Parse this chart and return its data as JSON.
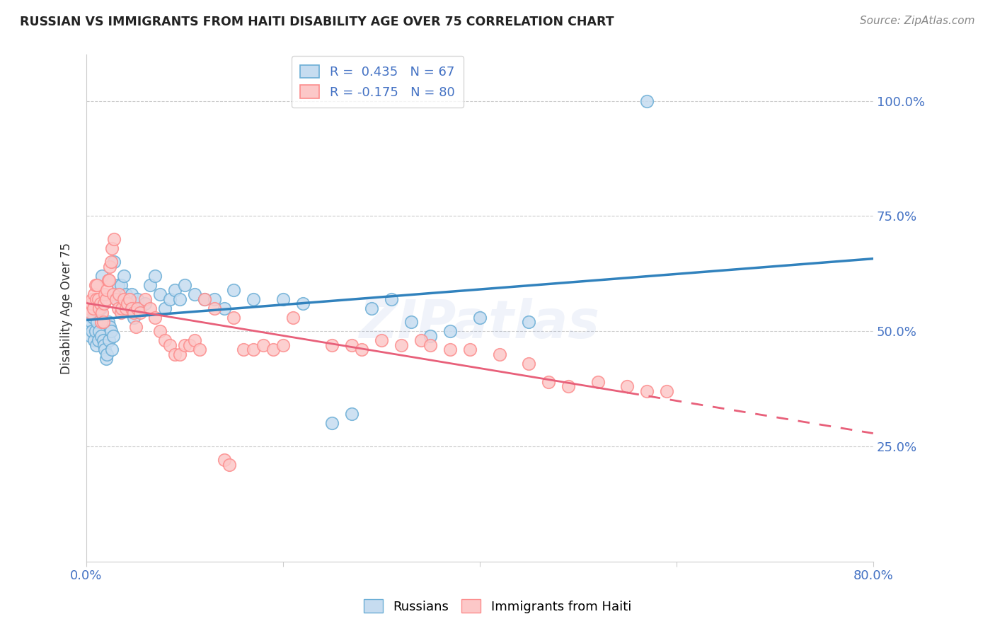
{
  "title": "RUSSIAN VS IMMIGRANTS FROM HAITI DISABILITY AGE OVER 75 CORRELATION CHART",
  "source": "Source: ZipAtlas.com",
  "ylabel": "Disability Age Over 75",
  "yticks": [
    "25.0%",
    "50.0%",
    "75.0%",
    "100.0%"
  ],
  "ytick_vals": [
    0.25,
    0.5,
    0.75,
    1.0
  ],
  "xmin": 0.0,
  "xmax": 0.8,
  "ymin": 0.0,
  "ymax": 1.1,
  "legend_r1": "R =  0.435   N = 67",
  "legend_r2": "R = -0.175   N = 80",
  "russian_color": "#6baed6",
  "haiti_color": "#fc8d8d",
  "trend_blue": "#3182bd",
  "trend_pink": "#e8607a",
  "watermark": "ZIPatlas",
  "russian_r": 0.435,
  "haiti_r": -0.175,
  "russian_points": [
    [
      0.003,
      0.51
    ],
    [
      0.004,
      0.49
    ],
    [
      0.005,
      0.52
    ],
    [
      0.006,
      0.5
    ],
    [
      0.007,
      0.53
    ],
    [
      0.008,
      0.48
    ],
    [
      0.009,
      0.5
    ],
    [
      0.01,
      0.47
    ],
    [
      0.011,
      0.52
    ],
    [
      0.012,
      0.48
    ],
    [
      0.013,
      0.5
    ],
    [
      0.014,
      0.55
    ],
    [
      0.015,
      0.49
    ],
    [
      0.016,
      0.62
    ],
    [
      0.017,
      0.48
    ],
    [
      0.018,
      0.47
    ],
    [
      0.019,
      0.46
    ],
    [
      0.02,
      0.44
    ],
    [
      0.021,
      0.45
    ],
    [
      0.022,
      0.52
    ],
    [
      0.023,
      0.48
    ],
    [
      0.024,
      0.51
    ],
    [
      0.025,
      0.5
    ],
    [
      0.026,
      0.46
    ],
    [
      0.027,
      0.49
    ],
    [
      0.028,
      0.65
    ],
    [
      0.03,
      0.57
    ],
    [
      0.032,
      0.6
    ],
    [
      0.033,
      0.58
    ],
    [
      0.035,
      0.6
    ],
    [
      0.036,
      0.57
    ],
    [
      0.038,
      0.62
    ],
    [
      0.04,
      0.58
    ],
    [
      0.042,
      0.55
    ],
    [
      0.044,
      0.57
    ],
    [
      0.046,
      0.58
    ],
    [
      0.048,
      0.53
    ],
    [
      0.05,
      0.56
    ],
    [
      0.052,
      0.57
    ],
    [
      0.055,
      0.55
    ],
    [
      0.06,
      0.56
    ],
    [
      0.065,
      0.6
    ],
    [
      0.07,
      0.62
    ],
    [
      0.075,
      0.58
    ],
    [
      0.08,
      0.55
    ],
    [
      0.085,
      0.57
    ],
    [
      0.09,
      0.59
    ],
    [
      0.095,
      0.57
    ],
    [
      0.1,
      0.6
    ],
    [
      0.11,
      0.58
    ],
    [
      0.12,
      0.57
    ],
    [
      0.13,
      0.57
    ],
    [
      0.14,
      0.55
    ],
    [
      0.15,
      0.59
    ],
    [
      0.17,
      0.57
    ],
    [
      0.2,
      0.57
    ],
    [
      0.22,
      0.56
    ],
    [
      0.25,
      0.3
    ],
    [
      0.27,
      0.32
    ],
    [
      0.29,
      0.55
    ],
    [
      0.31,
      0.57
    ],
    [
      0.33,
      0.52
    ],
    [
      0.35,
      0.49
    ],
    [
      0.37,
      0.5
    ],
    [
      0.4,
      0.53
    ],
    [
      0.45,
      0.52
    ],
    [
      0.57,
      1.0
    ]
  ],
  "haiti_points": [
    [
      0.003,
      0.55
    ],
    [
      0.004,
      0.54
    ],
    [
      0.005,
      0.56
    ],
    [
      0.006,
      0.57
    ],
    [
      0.007,
      0.55
    ],
    [
      0.008,
      0.58
    ],
    [
      0.009,
      0.6
    ],
    [
      0.01,
      0.57
    ],
    [
      0.011,
      0.6
    ],
    [
      0.012,
      0.57
    ],
    [
      0.013,
      0.55
    ],
    [
      0.014,
      0.56
    ],
    [
      0.015,
      0.52
    ],
    [
      0.016,
      0.54
    ],
    [
      0.017,
      0.52
    ],
    [
      0.018,
      0.56
    ],
    [
      0.019,
      0.58
    ],
    [
      0.02,
      0.57
    ],
    [
      0.021,
      0.59
    ],
    [
      0.022,
      0.61
    ],
    [
      0.023,
      0.61
    ],
    [
      0.024,
      0.64
    ],
    [
      0.025,
      0.65
    ],
    [
      0.026,
      0.68
    ],
    [
      0.027,
      0.58
    ],
    [
      0.028,
      0.7
    ],
    [
      0.03,
      0.57
    ],
    [
      0.032,
      0.55
    ],
    [
      0.033,
      0.58
    ],
    [
      0.035,
      0.54
    ],
    [
      0.036,
      0.55
    ],
    [
      0.038,
      0.57
    ],
    [
      0.04,
      0.55
    ],
    [
      0.042,
      0.56
    ],
    [
      0.044,
      0.57
    ],
    [
      0.046,
      0.55
    ],
    [
      0.048,
      0.54
    ],
    [
      0.05,
      0.51
    ],
    [
      0.052,
      0.55
    ],
    [
      0.055,
      0.54
    ],
    [
      0.06,
      0.57
    ],
    [
      0.065,
      0.55
    ],
    [
      0.07,
      0.53
    ],
    [
      0.075,
      0.5
    ],
    [
      0.08,
      0.48
    ],
    [
      0.085,
      0.47
    ],
    [
      0.09,
      0.45
    ],
    [
      0.095,
      0.45
    ],
    [
      0.1,
      0.47
    ],
    [
      0.105,
      0.47
    ],
    [
      0.11,
      0.48
    ],
    [
      0.115,
      0.46
    ],
    [
      0.12,
      0.57
    ],
    [
      0.13,
      0.55
    ],
    [
      0.14,
      0.22
    ],
    [
      0.145,
      0.21
    ],
    [
      0.15,
      0.53
    ],
    [
      0.16,
      0.46
    ],
    [
      0.17,
      0.46
    ],
    [
      0.18,
      0.47
    ],
    [
      0.19,
      0.46
    ],
    [
      0.2,
      0.47
    ],
    [
      0.21,
      0.53
    ],
    [
      0.25,
      0.47
    ],
    [
      0.27,
      0.47
    ],
    [
      0.28,
      0.46
    ],
    [
      0.3,
      0.48
    ],
    [
      0.32,
      0.47
    ],
    [
      0.34,
      0.48
    ],
    [
      0.35,
      0.47
    ],
    [
      0.37,
      0.46
    ],
    [
      0.39,
      0.46
    ],
    [
      0.42,
      0.45
    ],
    [
      0.45,
      0.43
    ],
    [
      0.47,
      0.39
    ],
    [
      0.49,
      0.38
    ],
    [
      0.52,
      0.39
    ],
    [
      0.55,
      0.38
    ],
    [
      0.57,
      0.37
    ],
    [
      0.59,
      0.37
    ]
  ]
}
